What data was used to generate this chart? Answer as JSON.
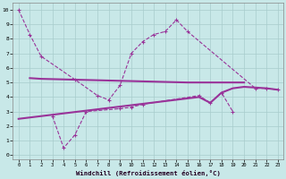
{
  "xlabel": "Windchill (Refroidissement éolien,°C)",
  "background_color": "#c8e8e8",
  "grid_color": "#a8cccc",
  "line_color": "#993399",
  "xlim": [
    -0.5,
    23.5
  ],
  "ylim": [
    -0.3,
    10.5
  ],
  "xticks": [
    0,
    1,
    2,
    3,
    4,
    5,
    6,
    7,
    8,
    9,
    10,
    11,
    12,
    13,
    14,
    15,
    16,
    17,
    18,
    19,
    20,
    21,
    22,
    23
  ],
  "yticks": [
    0,
    1,
    2,
    3,
    4,
    5,
    6,
    7,
    8,
    9,
    10
  ],
  "line1_x": [
    0,
    1,
    2,
    5,
    7,
    8,
    9,
    10,
    11,
    12,
    13,
    14,
    15,
    21,
    22,
    23
  ],
  "line1_y": [
    10,
    8.3,
    6.8,
    5.2,
    4.1,
    3.8,
    4.8,
    7.0,
    7.8,
    8.3,
    8.5,
    9.3,
    8.5,
    4.6,
    4.6,
    4.5
  ],
  "line2_x": [
    3,
    4,
    5,
    6,
    9,
    10,
    11,
    16,
    17,
    18,
    19
  ],
  "line2_y": [
    2.7,
    0.5,
    1.4,
    3.0,
    3.2,
    3.3,
    3.5,
    4.1,
    3.6,
    4.3,
    3.0
  ],
  "line3_x": [
    1,
    2,
    15,
    20
  ],
  "line3_y": [
    5.3,
    5.25,
    5.0,
    5.0
  ],
  "line4_x": [
    0,
    16,
    17,
    18,
    19,
    20,
    21,
    22,
    23
  ],
  "line4_y": [
    2.5,
    4.0,
    3.6,
    4.3,
    4.6,
    4.7,
    4.65,
    4.6,
    4.5
  ]
}
